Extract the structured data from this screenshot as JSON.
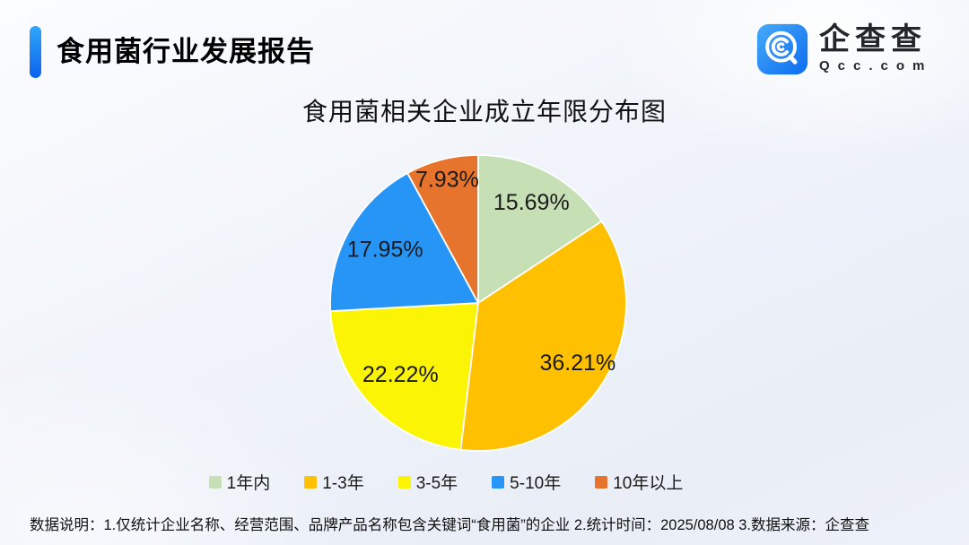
{
  "page": {
    "background_top": "#fbfcfe",
    "background_bottom": "#edf0f8"
  },
  "header": {
    "title": "食用菌行业发展报告",
    "accent_color_top": "#2fa7f9",
    "accent_color_bottom": "#0b63ee"
  },
  "logo": {
    "brand": "企查查",
    "domain": "Qcc.com",
    "icon": "qcc-magnifier-icon",
    "icon_gradient_start": "#47aaf9",
    "icon_gradient_end": "#0c6cf0",
    "text_color": "#24262b"
  },
  "chart_data": {
    "type": "pie",
    "title": "食用菌相关企业成立年限分布图",
    "categories": [
      "1年内",
      "1-3年",
      "3-5年",
      "5-10年",
      "10年以上"
    ],
    "values": [
      15.69,
      36.21,
      22.22,
      17.95,
      7.93
    ],
    "labels": [
      "15.69%",
      "36.21%",
      "22.22%",
      "17.95%",
      "7.93%"
    ],
    "colors": [
      "#c6dfb5",
      "#ffc000",
      "#fcf405",
      "#2795f5",
      "#e7742c"
    ],
    "start_angle_deg": 0,
    "direction": "clockwise",
    "legend_position": "bottom",
    "label_color": "#1a1a1a",
    "label_radius": [
      0.76,
      0.79,
      0.72,
      0.72,
      0.85
    ],
    "slice_border_color": "#ffffff"
  },
  "footer": {
    "text": "数据说明：1.仅统计企业名称、经营范围、品牌产品名称包含关键词“食用菌”的企业  2.统计时间：2025/08/08   3.数据来源：企查查"
  }
}
